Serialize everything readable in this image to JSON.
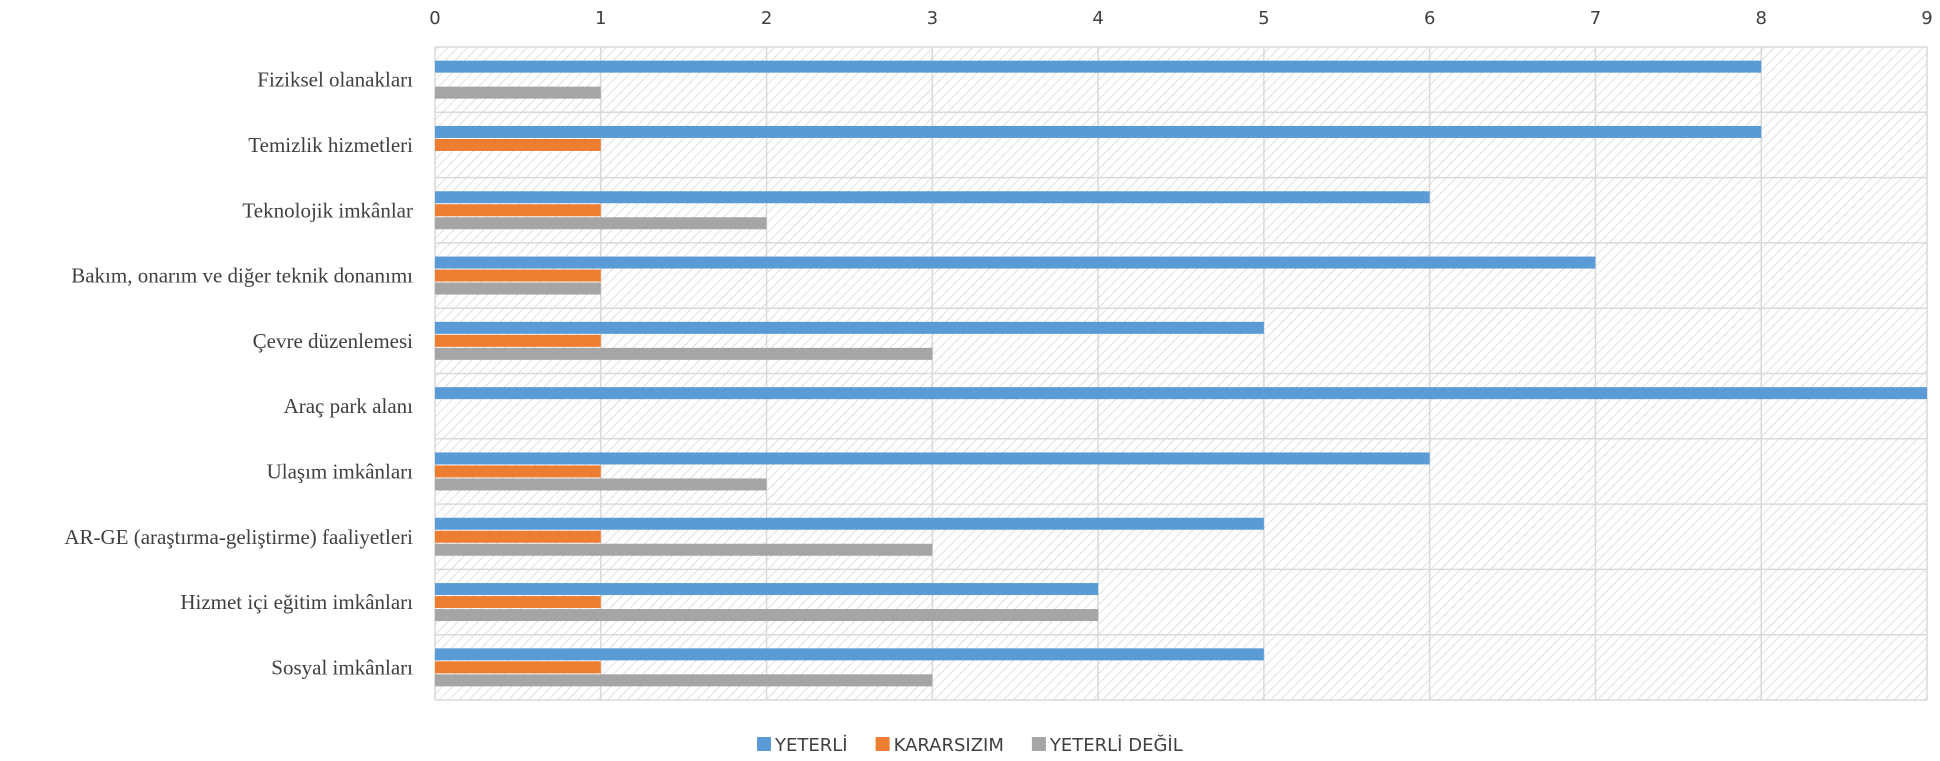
{
  "chart_data": {
    "type": "bar",
    "orientation": "horizontal",
    "categories": [
      "Fiziksel olanakları",
      "Temizlik hizmetleri",
      "Teknolojik imkânlar",
      "Bakım, onarım ve diğer teknik donanımı",
      "Çevre düzenlemesi",
      "Araç park alanı",
      "Ulaşım imkânları",
      "AR-GE (araştırma-geliştirme) faaliyetleri",
      "Hizmet içi eğitim imkânları",
      "Sosyal imkânları"
    ],
    "series": [
      {
        "name": "YETERLİ",
        "color": "#5B9BD5",
        "values": [
          8,
          8,
          6,
          7,
          5,
          9,
          6,
          5,
          4,
          5
        ]
      },
      {
        "name": "KARARSIZIM",
        "color": "#ED7D31",
        "values": [
          0,
          1,
          1,
          1,
          1,
          0,
          1,
          1,
          1,
          1
        ]
      },
      {
        "name": "YETERLİ DEĞİL",
        "color": "#A5A5A5",
        "values": [
          1,
          0,
          2,
          1,
          3,
          0,
          2,
          3,
          4,
          3
        ]
      }
    ],
    "x_ticks": [
      "0",
      "1",
      "2",
      "3",
      "4",
      "5",
      "6",
      "7",
      "8",
      "9"
    ],
    "xlim": [
      0,
      9
    ],
    "x_axis_position": "top",
    "grid": true,
    "legend": "bottom",
    "background_pattern": "diagonal-hatch"
  }
}
